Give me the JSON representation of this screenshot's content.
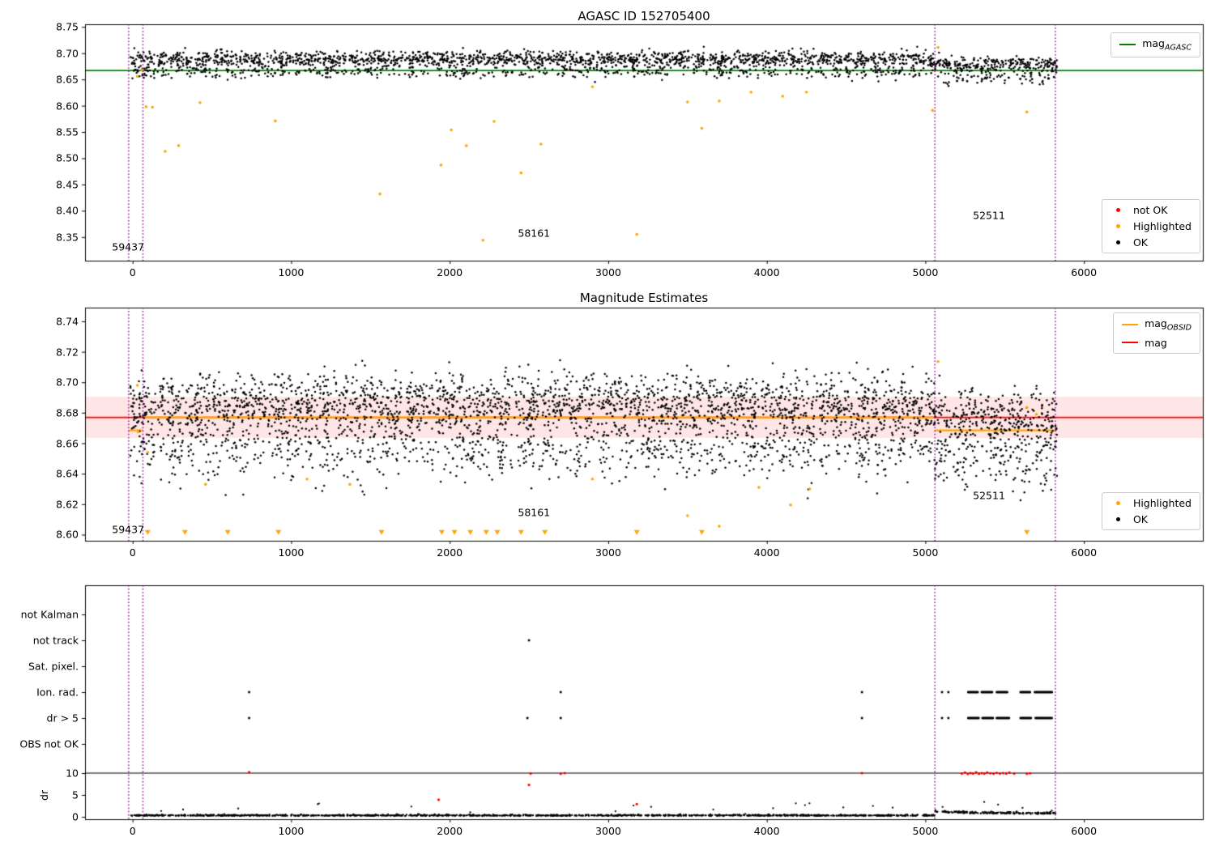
{
  "figure": {
    "bg": "#ffffff",
    "text_color": "#000000"
  },
  "chart_data": [
    {
      "id": "plot1",
      "type": "scatter",
      "title": "AGASC ID 152705400",
      "xlim": [
        -300,
        6750
      ],
      "ylim": [
        8.305,
        8.755
      ],
      "xticks": [
        0,
        1000,
        2000,
        3000,
        4000,
        5000,
        6000
      ],
      "xtick_labels": [
        "0",
        "1000",
        "2000",
        "3000",
        "4000",
        "5000",
        "6000"
      ],
      "yticks": [
        8.75,
        8.7,
        8.65,
        8.6,
        8.55,
        8.5,
        8.45,
        8.4,
        8.35
      ],
      "ytick_labels": [
        "8.75",
        "8.70",
        "8.65",
        "8.60",
        "8.55",
        "8.50",
        "8.45",
        "8.40",
        "8.35"
      ],
      "ok_color": "#000000",
      "hl_color": "#FFA500",
      "not_ok_color": "#FF0000",
      "lines": [
        {
          "y": 8.667,
          "color": "#008000",
          "width": 1.8
        }
      ],
      "ok_gen": {
        "seed": 7,
        "x0": -20,
        "x1": 5830,
        "period": 173,
        "per": 75,
        "spread": 0.95,
        "hi_frac": 0.74,
        "hi_mean": 8.6885,
        "hi_sd": 0.0075,
        "lo_mean": 8.6645,
        "lo_sd": 0.0065,
        "shift_x": 5060,
        "shift": -0.011,
        "ymin": 8.6,
        "ymax": 8.7135
      },
      "highlighted": [
        [
          30,
          8.6555
        ],
        [
          60,
          8.668
        ],
        [
          85,
          8.598
        ],
        [
          125,
          8.597
        ],
        [
          205,
          8.513
        ],
        [
          290,
          8.524
        ],
        [
          425,
          8.606
        ],
        [
          900,
          8.571
        ],
        [
          1560,
          8.432
        ],
        [
          1945,
          8.487
        ],
        [
          2010,
          8.554
        ],
        [
          2105,
          8.524
        ],
        [
          2210,
          8.344
        ],
        [
          2280,
          8.57
        ],
        [
          2450,
          8.472
        ],
        [
          2575,
          8.527
        ],
        [
          2900,
          8.636
        ],
        [
          3180,
          8.355
        ],
        [
          3500,
          8.607
        ],
        [
          3590,
          8.557
        ],
        [
          3700,
          8.609
        ],
        [
          3900,
          8.626
        ],
        [
          4100,
          8.618
        ],
        [
          4250,
          8.626
        ],
        [
          5045,
          8.591
        ],
        [
          5080,
          8.711
        ],
        [
          5640,
          8.588
        ]
      ],
      "not_ok": [],
      "vlines": {
        "x": [
          -25,
          65,
          5060,
          5820
        ],
        "color": "#800080"
      },
      "annotations": [
        {
          "text": "59437",
          "x": -130,
          "y": 8.331
        },
        {
          "text": "58161",
          "x": 2430,
          "y": 8.357
        },
        {
          "text": "52511",
          "x": 5300,
          "y": 8.392
        }
      ],
      "legend_lines": [
        {
          "color": "#008000",
          "label": "mag",
          "sub": "AGASC"
        }
      ],
      "legend_points": [
        {
          "color": "#FF0000",
          "label": "not OK"
        },
        {
          "color": "#FFA500",
          "label": "Highlighted"
        },
        {
          "color": "#000000",
          "label": "OK"
        }
      ]
    },
    {
      "id": "plot2",
      "type": "scatter",
      "title": "Magnitude Estimates",
      "xlim": [
        -300,
        6750
      ],
      "ylim": [
        8.596,
        8.749
      ],
      "xticks": [
        0,
        1000,
        2000,
        3000,
        4000,
        5000,
        6000
      ],
      "xtick_labels": [
        "0",
        "1000",
        "2000",
        "3000",
        "4000",
        "5000",
        "6000"
      ],
      "yticks": [
        8.74,
        8.72,
        8.7,
        8.68,
        8.66,
        8.64,
        8.62,
        8.6
      ],
      "ytick_labels": [
        "8.74",
        "8.72",
        "8.70",
        "8.68",
        "8.66",
        "8.64",
        "8.62",
        "8.60"
      ],
      "ok_color": "#000000",
      "hl_color": "#FFA500",
      "band": {
        "y0": 8.6635,
        "y1": 8.6905,
        "color": "rgba(255,0,0,0.10)"
      },
      "lines": [
        {
          "y": 8.677,
          "color": "#FF0000",
          "width": 1.8
        },
        {
          "y": 8.6685,
          "x0": -25,
          "x1": 65,
          "color": "#FFA500",
          "width": 2.2
        },
        {
          "y": 8.677,
          "x0": 65,
          "x1": 5055,
          "color": "#FFA500",
          "width": 2.2
        },
        {
          "y": 8.6685,
          "x0": 5060,
          "x1": 5820,
          "color": "#FFA500",
          "width": 2.2
        }
      ],
      "ok_gen": {
        "seed": 13,
        "x0": -20,
        "x1": 5830,
        "period": 173,
        "per": 108,
        "spread": 0.95,
        "hi_frac": 0.66,
        "hi_mean": 8.6865,
        "hi_sd": 0.0095,
        "lo_mean": 8.659,
        "lo_sd": 0.0115,
        "shift_x": 5060,
        "shift": -0.01,
        "ymin": 8.602,
        "ymax": 8.7155
      },
      "highlighted": [
        [
          30,
          8.698
        ],
        [
          35,
          8.6675
        ],
        [
          95,
          8.654
        ],
        [
          460,
          8.633
        ],
        [
          1100,
          8.6365
        ],
        [
          1370,
          8.633
        ],
        [
          2900,
          8.6365
        ],
        [
          3500,
          8.6125
        ],
        [
          3700,
          8.6055
        ],
        [
          3950,
          8.631
        ],
        [
          4150,
          8.6195
        ],
        [
          4270,
          8.63
        ],
        [
          5080,
          8.7135
        ],
        [
          5640,
          8.6835
        ],
        [
          5700,
          8.679
        ]
      ],
      "triangles": {
        "y": 8.6015,
        "x": [
          95,
          330,
          600,
          920,
          1570,
          1950,
          2030,
          2130,
          2230,
          2300,
          2450,
          2600,
          3180,
          3590,
          5640
        ]
      },
      "vlines": {
        "x": [
          -25,
          65,
          5060,
          5820
        ],
        "color": "#800080"
      },
      "annotations": [
        {
          "text": "59437",
          "x": -130,
          "y": 8.6035
        },
        {
          "text": "58161",
          "x": 2430,
          "y": 8.6145
        },
        {
          "text": "52511",
          "x": 5300,
          "y": 8.626
        }
      ],
      "legend_lines": [
        {
          "color": "#FFA500",
          "label": "mag",
          "sub": "OBSID"
        },
        {
          "color": "#FF0000",
          "label": "mag",
          "sub": ""
        }
      ],
      "legend_points": [
        {
          "color": "#FFA500",
          "label": "Highlighted"
        },
        {
          "color": "#000000",
          "label": "OK"
        }
      ]
    },
    {
      "id": "plot3",
      "type": "scatter",
      "title": "",
      "xlim": [
        -300,
        6750
      ],
      "xticks": [
        0,
        1000,
        2000,
        3000,
        4000,
        5000,
        6000
      ],
      "xtick_labels": [
        "0",
        "1000",
        "2000",
        "3000",
        "4000",
        "5000",
        "6000"
      ],
      "point_color": "#000000",
      "red_color": "#FF0000",
      "rows": [
        {
          "label": "not Kalman",
          "points": [],
          "runs": []
        },
        {
          "label": "not track",
          "points": [
            2500
          ],
          "runs": []
        },
        {
          "label": "Sat. pixel.",
          "points": [],
          "runs": []
        },
        {
          "label": "Ion. rad.",
          "points": [
            735,
            2700,
            4600,
            5105,
            5145
          ],
          "runs": [
            [
              5270,
              5335
            ],
            [
              5355,
              5425
            ],
            [
              5450,
              5520
            ],
            [
              5600,
              5665
            ],
            [
              5690,
              5800
            ]
          ]
        },
        {
          "label": "dr > 5",
          "points": [
            735,
            2490,
            2700,
            4600,
            5105,
            5145
          ],
          "runs": [
            [
              5270,
              5340
            ],
            [
              5360,
              5430
            ],
            [
              5450,
              5530
            ],
            [
              5600,
              5670
            ],
            [
              5695,
              5800
            ]
          ]
        },
        {
          "label": "OBS not OK",
          "points": [],
          "runs": []
        }
      ],
      "dr": {
        "ylabel": "dr",
        "ticks": [
          10,
          5,
          0
        ],
        "tick_labels": [
          "10",
          "5",
          "0"
        ],
        "hline": 10,
        "ok_gen": {
          "seed": 99,
          "n": 1600,
          "x0": -10,
          "x1": 5830,
          "base": 0.22,
          "noise": 0.13,
          "out_p": 0.012,
          "shift_x": 5060
        },
        "red_points": [
          [
            735,
            10.2
          ],
          [
            1930,
            3.9
          ],
          [
            2500,
            7.3
          ],
          [
            2510,
            9.9
          ],
          [
            2700,
            9.85
          ],
          [
            2725,
            10.0
          ],
          [
            3180,
            2.9
          ],
          [
            4600,
            10.0
          ],
          [
            5230,
            9.9
          ],
          [
            5250,
            10.1
          ],
          [
            5268,
            9.8
          ],
          [
            5285,
            10.0
          ],
          [
            5300,
            9.9
          ],
          [
            5320,
            10.15
          ],
          [
            5338,
            9.85
          ],
          [
            5355,
            10.0
          ],
          [
            5372,
            9.9
          ],
          [
            5390,
            10.1
          ],
          [
            5410,
            9.95
          ],
          [
            5430,
            9.85
          ],
          [
            5450,
            10.05
          ],
          [
            5470,
            9.9
          ],
          [
            5490,
            10.0
          ],
          [
            5510,
            9.9
          ],
          [
            5530,
            10.1
          ],
          [
            5560,
            9.9
          ],
          [
            5640,
            9.85
          ],
          [
            5660,
            9.95
          ]
        ]
      },
      "vlines": {
        "x": [
          -25,
          65,
          5060,
          5820
        ],
        "color": "#800080"
      }
    }
  ]
}
